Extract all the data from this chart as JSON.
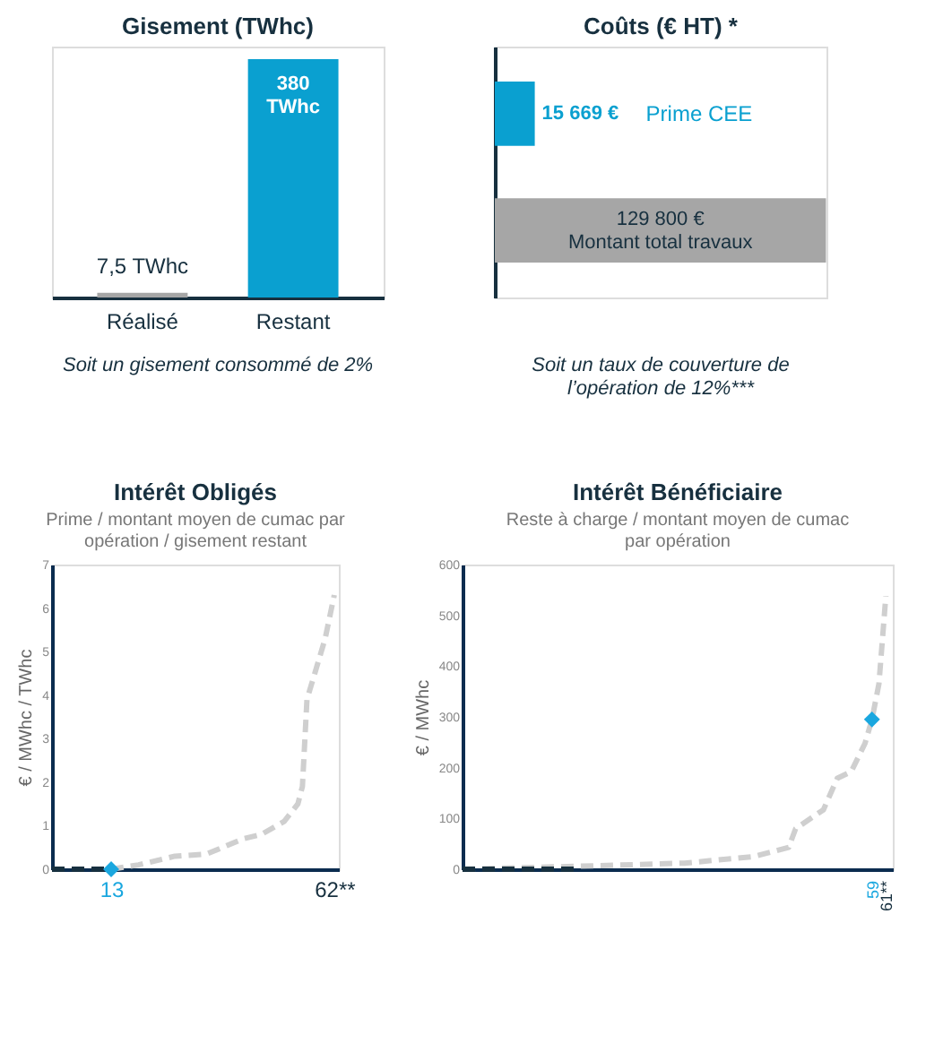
{
  "chart_data": [
    {
      "type": "bar",
      "title": "Gisement (TWhc)",
      "categories": [
        "Réalisé",
        "Restant"
      ],
      "values": [
        7.5,
        380
      ],
      "colors": [
        "#a6a6a6",
        "#0aa0d0"
      ],
      "value_labels": [
        "7,5 TWhc",
        "380 TWhc"
      ],
      "annotations": [
        "Soit un gisement consommé de 2%"
      ]
    },
    {
      "type": "bar",
      "title": "Coûts (€ HT) *",
      "orientation": "horizontal",
      "categories": [
        "Prime CEE",
        "Montant total travaux"
      ],
      "values": [
        15669,
        129800
      ],
      "colors": [
        "#0aa0d0",
        "#a6a6a6"
      ],
      "value_labels": [
        "15 669 €",
        "129 800 €"
      ],
      "annotations": [
        "Soit un taux de couverture de l’opération de 12%***"
      ]
    },
    {
      "type": "line",
      "title": "Intérêt Obligés",
      "subtitle": "Prime / montant moyen de cumac par opération / gisement restant",
      "ylabel": "€ / MWhc / TWhc",
      "xlim": [
        0,
        63
      ],
      "xticks": [
        {
          "value": 13,
          "label": "13"
        },
        {
          "value": 62,
          "label": "62**"
        }
      ],
      "ylim": [
        0,
        7
      ],
      "yticks": [
        0,
        1,
        2,
        3,
        4,
        5,
        6,
        7
      ],
      "grid": false,
      "line_style": "dashed",
      "series": [
        {
          "color": "#cfcfcf",
          "x": [
            0,
            13,
            19,
            27,
            34,
            42,
            46,
            51,
            54,
            55,
            56,
            58,
            60,
            62
          ],
          "values": [
            0,
            0,
            0.1,
            0.3,
            0.35,
            0.7,
            0.8,
            1.1,
            1.5,
            1.9,
            3.9,
            4.6,
            5.3,
            6.3
          ]
        },
        {
          "color": "#17303f",
          "x": [
            0,
            13
          ],
          "values": [
            0,
            0
          ]
        },
        {
          "type": "scatter",
          "marker": "diamond",
          "color": "#1aa7df",
          "x": [
            13
          ],
          "values": [
            0
          ]
        }
      ]
    },
    {
      "type": "line",
      "title": "Intérêt Bénéficiaire",
      "subtitle": "Reste à charge / montant moyen de cumac par opération",
      "ylabel": "€ / MWhc",
      "xlim": [
        0,
        62
      ],
      "xticks": [
        {
          "value": 59,
          "label": "59"
        },
        {
          "value": 61,
          "label": "61**"
        }
      ],
      "ylim": [
        0,
        600
      ],
      "yticks": [
        0,
        100,
        200,
        300,
        400,
        500,
        600
      ],
      "grid": false,
      "line_style": "dashed",
      "series": [
        {
          "color": "#cfcfcf",
          "x": [
            0,
            17,
            32,
            42,
            47,
            48,
            52,
            54,
            56,
            58,
            59,
            60,
            61
          ],
          "values": [
            0,
            6,
            12,
            25,
            43,
            80,
            117,
            179,
            192,
            248,
            295,
            365,
            538
          ]
        },
        {
          "color": "#17303f",
          "x": [
            0,
            17
          ],
          "values": [
            0,
            0
          ]
        },
        {
          "type": "scatter",
          "marker": "diamond",
          "color": "#1aa7df",
          "x": [
            59
          ],
          "values": [
            295
          ]
        }
      ]
    }
  ]
}
